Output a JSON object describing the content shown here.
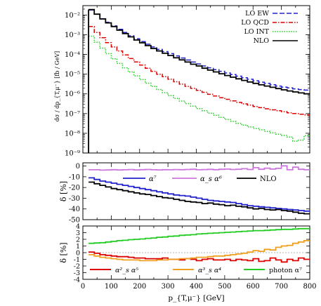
{
  "chart_data": [
    {
      "type": "line",
      "panel": "top",
      "step": true,
      "x_bin_edges": [
        20,
        40,
        60,
        80,
        100,
        120,
        140,
        160,
        180,
        200,
        220,
        240,
        260,
        280,
        300,
        320,
        340,
        360,
        380,
        400,
        420,
        440,
        460,
        480,
        500,
        520,
        540,
        560,
        580,
        600,
        620,
        640,
        660,
        680,
        700,
        720,
        740,
        760,
        780,
        800
      ],
      "ylabel": "dσ / dp_{T,μ⁻} [fb / GeV]",
      "ylim": [
        1e-09,
        0.03
      ],
      "yscale": "log",
      "y_ticks": [
        "10⁻²",
        "10⁻³",
        "10⁻⁴",
        "10⁻⁵",
        "10⁻⁶",
        "10⁻⁷",
        "10⁻⁸",
        "10⁻⁹"
      ],
      "legend_position": "top-right",
      "series": [
        {
          "name": "LO EW",
          "color": "#2222cc",
          "dash": "dashed",
          "values": [
            0.018,
            0.011,
            0.0065,
            0.0043,
            0.0028,
            0.0019,
            0.0013,
            0.00088,
            0.00062,
            0.00045,
            0.00033,
            0.00024,
            0.00018,
            0.00014,
            0.00011,
            8.5e-05,
            6.6e-05,
            5.2e-05,
            4.1e-05,
            3.3e-05,
            2.6e-05,
            2.1e-05,
            1.7e-05,
            1.4e-05,
            1.15e-05,
            9.5e-06,
            7.9e-06,
            6.6e-06,
            5.5e-06,
            4.6e-06,
            3.9e-06,
            3.4e-06,
            2.9e-06,
            2.5e-06,
            2.2e-06,
            2e-06,
            1.8e-06,
            1.65e-06,
            1.55e-06
          ]
        },
        {
          "name": "LO QCD",
          "color": "#dd0000",
          "dash": "dashdot",
          "values": [
            0.0026,
            0.0013,
            0.0007,
            0.0004,
            0.00024,
            0.00015,
            9.5e-05,
            6.2e-05,
            4.2e-05,
            2.9e-05,
            2e-05,
            1.4e-05,
            1e-05,
            7.4e-06,
            5.5e-06,
            4.1e-06,
            3.1e-06,
            2.4e-06,
            1.9e-06,
            1.5e-06,
            1.2e-06,
            9.5e-07,
            7.8e-07,
            6.4e-07,
            5.3e-07,
            4.4e-07,
            3.7e-07,
            3.1e-07,
            2.7e-07,
            2.3e-07,
            2e-07,
            1.75e-07,
            1.55e-07,
            1.4e-07,
            1.25e-07,
            1.1e-07,
            1e-07,
            9.2e-08,
            8.5e-08
          ]
        },
        {
          "name": "LO INT",
          "color": "#22cc22",
          "dash": "dotted",
          "values": [
            0.00085,
            0.00042,
            0.00021,
            0.00011,
            6e-05,
            3.5e-05,
            2.1e-05,
            1.3e-05,
            8.2e-06,
            5.3e-06,
            3.5e-06,
            2.4e-06,
            1.65e-06,
            1.15e-06,
            8.2e-07,
            5.9e-07,
            4.3e-07,
            3.2e-07,
            2.4e-07,
            1.8e-07,
            1.4e-07,
            1.05e-07,
            8.2e-08,
            6.4e-08,
            5e-08,
            4e-08,
            3.2e-08,
            2.6e-08,
            2.1e-08,
            1.75e-08,
            1.5e-08,
            1.25e-08,
            1.05e-08,
            9e-09,
            7.8e-09,
            6.5e-09,
            4e-09,
            4.5e-09,
            7.5e-09
          ]
        },
        {
          "name": "NLO",
          "color": "#000000",
          "dash": "solid",
          "values": [
            0.019,
            0.011,
            0.0063,
            0.004,
            0.0026,
            0.0017,
            0.00115,
            0.00078,
            0.00054,
            0.00039,
            0.00028,
            0.0002,
            0.00015,
            0.000115,
            8.8e-05,
            6.8e-05,
            5.3e-05,
            4.1e-05,
            3.2e-05,
            2.6e-05,
            2e-05,
            1.6e-05,
            1.3e-05,
            1.05e-05,
            8.5e-06,
            7e-06,
            5.8e-06,
            4.8e-06,
            4e-06,
            3.4e-06,
            2.9e-06,
            2.5e-06,
            2.15e-06,
            1.85e-06,
            1.6e-06,
            1.4e-06,
            1.25e-06,
            1.12e-06,
            1e-06
          ]
        }
      ]
    },
    {
      "type": "line",
      "panel": "middle",
      "step": true,
      "ylabel": "δ [%]",
      "ylim": [
        -50,
        3
      ],
      "y_ticks": [
        0,
        -10,
        -20,
        -30,
        -40,
        -50
      ],
      "legend_position": "center",
      "series": [
        {
          "name": "α⁷",
          "color": "#2222cc",
          "values": [
            -11,
            -12.5,
            -14,
            -15,
            -16,
            -17,
            -18,
            -19,
            -20,
            -21,
            -22,
            -23,
            -24,
            -25,
            -26,
            -27,
            -27.5,
            -28,
            -29,
            -30,
            -31,
            -32,
            -32.5,
            -33,
            -33.5,
            -34,
            -35,
            -36,
            -37,
            -37.5,
            -38,
            -38.5,
            -39,
            -39.5,
            -40,
            -40.5,
            -41,
            -41.5,
            -42
          ]
        },
        {
          "name": "α_s α⁶",
          "color": "#cc77dd",
          "values": [
            -3.5,
            -3.5,
            -3.8,
            -3.6,
            -3.4,
            -3.7,
            -3.5,
            -3.3,
            -3.6,
            -3.4,
            -3.2,
            -3.5,
            -3.6,
            -3.4,
            -3.5,
            -3.3,
            -3.4,
            -3.2,
            -3.0,
            -3.5,
            -3.3,
            -3.1,
            -3.4,
            -3.0,
            -2.8,
            -3.2,
            -3.0,
            -2.5,
            -3.2,
            -1.5,
            -3.0,
            -2.0,
            -2.8,
            -2.2,
            0.2,
            -3.5,
            -1.0,
            -3.0,
            -3.5
          ]
        },
        {
          "name": "NLO",
          "color": "#000000",
          "values": [
            -15,
            -16.5,
            -18,
            -19.5,
            -21,
            -22,
            -23,
            -24,
            -25,
            -26,
            -26.5,
            -27.5,
            -28.5,
            -29.5,
            -30,
            -31,
            -32,
            -33,
            -33.5,
            -34,
            -35,
            -34.5,
            -35.5,
            -36,
            -37,
            -36.5,
            -37.5,
            -38,
            -39,
            -40,
            -39.5,
            -40.5,
            -41,
            -40.5,
            -41.5,
            -42,
            -43,
            -44,
            -44.5
          ]
        }
      ]
    },
    {
      "type": "line",
      "panel": "bottom",
      "step": true,
      "xlabel": "p_{T,μ⁻} [GeV]",
      "ylabel": "δ [%]",
      "xlim": [
        0,
        800
      ],
      "x_ticks": [
        0,
        100,
        200,
        300,
        400,
        500,
        600,
        700,
        800
      ],
      "ylim": [
        -4,
        4
      ],
      "y_ticks": [
        4,
        3,
        2,
        1,
        0,
        -1,
        -2,
        -3,
        -4
      ],
      "legend_position": "bottom",
      "series": [
        {
          "name": "α²_s α⁵",
          "color": "#dd0000",
          "values": [
            0.1,
            -0.1,
            -0.3,
            -0.4,
            -0.5,
            -0.6,
            -0.6,
            -0.7,
            -0.8,
            -0.8,
            -0.9,
            -0.9,
            -0.9,
            -0.8,
            -1.0,
            -1.0,
            -1.1,
            -0.9,
            -1.0,
            -1.2,
            -1.0,
            -0.9,
            -1.1,
            -1.1,
            -1.0,
            -1.2,
            -1.0,
            -1.1,
            -1.2,
            -0.9,
            -1.3,
            -1.2,
            -0.8,
            -1.1,
            -1.4,
            -1.0,
            -1.2,
            -0.8,
            -1.0
          ]
        },
        {
          "name": "α³_s α⁴",
          "color": "#f0a020",
          "values": [
            -0.3,
            -0.5,
            -0.7,
            -0.8,
            -0.9,
            -1.0,
            -1.1,
            -1.1,
            -1.1,
            -1.2,
            -1.2,
            -1.2,
            -1.1,
            -1.1,
            -1.0,
            -1.0,
            -0.9,
            -0.9,
            -0.8,
            -0.7,
            -0.7,
            -0.6,
            -0.5,
            -0.5,
            -0.4,
            -0.3,
            -0.2,
            -0.1,
            0.1,
            0.3,
            0.2,
            0.5,
            0.4,
            0.8,
            1.0,
            1.1,
            1.4,
            1.6,
            1.8
          ]
        },
        {
          "name": "photon α⁷",
          "color": "#22cc22",
          "values": [
            1.4,
            1.45,
            1.5,
            1.6,
            1.7,
            1.8,
            1.85,
            1.95,
            2.0,
            2.05,
            2.15,
            2.2,
            2.3,
            2.35,
            2.45,
            2.5,
            2.6,
            2.65,
            2.7,
            2.8,
            2.85,
            2.9,
            2.95,
            3.0,
            3.05,
            3.1,
            3.15,
            3.2,
            3.25,
            3.3,
            3.3,
            3.35,
            3.4,
            3.45,
            3.5,
            3.5,
            3.55,
            3.6,
            3.6
          ]
        }
      ]
    }
  ]
}
